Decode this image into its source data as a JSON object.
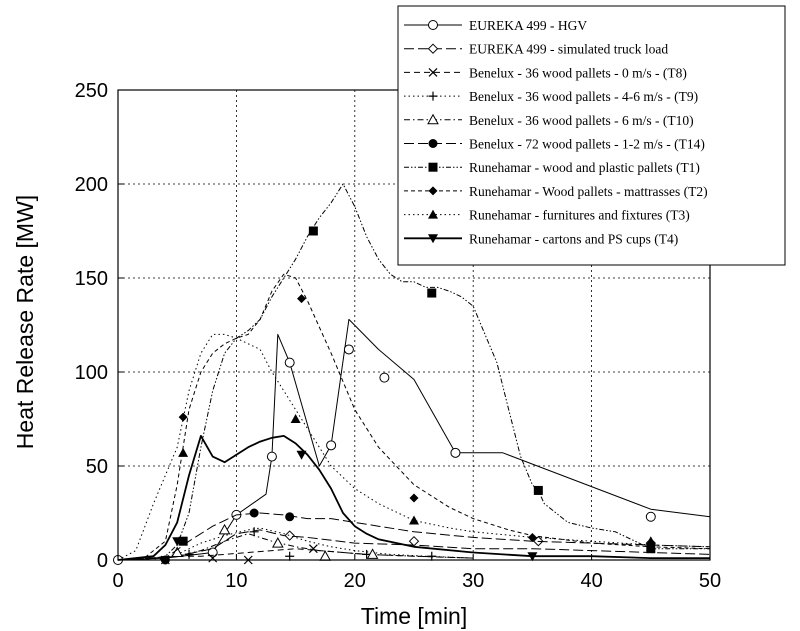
{
  "chart_data": {
    "type": "line",
    "title": "",
    "xlabel": "Time [min]",
    "ylabel": "Heat Release Rate [MW]",
    "xlim": [
      0,
      50
    ],
    "ylim": [
      0,
      250
    ],
    "xticks": [
      "0",
      "10",
      "20",
      "30",
      "40",
      "50"
    ],
    "yticks": [
      "0",
      "50",
      "100",
      "150",
      "200",
      "250"
    ],
    "grid": true,
    "legend_position": "top-right",
    "series": [
      {
        "name": "EUREKA 499 - HGV",
        "style": "solid",
        "marker": "circle-open",
        "x": [
          0,
          4,
          8,
          10,
          12.5,
          13,
          13.5,
          14.5,
          17,
          18,
          19.5,
          22,
          25,
          28.5,
          32.5,
          45,
          50
        ],
        "y": [
          0,
          1,
          4,
          24,
          35,
          55,
          120,
          105,
          50,
          61,
          128,
          112,
          96,
          57,
          57,
          27,
          23
        ],
        "marker_x": [
          0,
          8,
          10,
          13,
          14.5,
          18,
          19.5,
          22.5,
          28.5,
          45
        ],
        "marker_y": [
          0,
          4,
          24,
          55,
          105,
          61,
          112,
          97,
          57,
          23
        ]
      },
      {
        "name": "EUREKA 499 - simulated truck load",
        "style": "dash-long",
        "marker": "diamond-open",
        "x": [
          0,
          5,
          8,
          10,
          12,
          14,
          16,
          20,
          25,
          30,
          35,
          40,
          45,
          50
        ],
        "y": [
          0,
          2,
          6,
          14,
          16,
          13,
          12,
          9,
          8,
          6,
          6,
          5,
          4,
          3
        ],
        "marker_x": [
          14.5,
          25,
          35.5,
          45
        ],
        "marker_y": [
          13,
          10,
          10,
          9
        ]
      },
      {
        "name": "Benelux - 36 wood pallets - 0 m/s - (T8)",
        "style": "dashed",
        "marker": "x",
        "x": [
          0,
          3,
          5,
          7,
          9,
          11,
          13,
          15,
          17,
          19,
          21,
          25,
          30
        ],
        "y": [
          0,
          1,
          2,
          2,
          3,
          4,
          5,
          6,
          5,
          4,
          3,
          2,
          1
        ],
        "marker_x": [
          4,
          8,
          11,
          16.5
        ],
        "marker_y": [
          0,
          1,
          0,
          6
        ]
      },
      {
        "name": "Benelux - 36 wood pallets - 4-6 m/s - (T9)",
        "style": "dotted",
        "marker": "plus",
        "x": [
          0,
          3,
          5,
          7,
          9,
          11,
          12,
          14,
          16,
          18,
          20,
          23,
          26,
          30
        ],
        "y": [
          0,
          1,
          3,
          9,
          13,
          16,
          17,
          14,
          10,
          7,
          5,
          3,
          2,
          1
        ],
        "marker_x": [
          6,
          11.5,
          14.5,
          21,
          26.5
        ],
        "marker_y": [
          3,
          15,
          2,
          3,
          2
        ]
      },
      {
        "name": "Benelux - 36 wood pallets - 6 m/s - (T10)",
        "style": "dash-dot",
        "marker": "triangle-open",
        "x": [
          0,
          3,
          5,
          7,
          9,
          11,
          13,
          15,
          17,
          19,
          21,
          25,
          30
        ],
        "y": [
          0,
          1,
          2,
          5,
          10,
          14,
          10,
          7,
          5,
          4,
          3,
          2,
          1
        ],
        "marker_x": [
          5,
          9,
          13.5,
          17.5,
          21.5
        ],
        "marker_y": [
          4,
          16,
          9,
          2,
          3
        ]
      },
      {
        "name": "Benelux - 72 wood pallets - 1-2 m/s - (T14)",
        "style": "dash-long",
        "marker": "circle-filled",
        "x": [
          0,
          3,
          4,
          6,
          8,
          10,
          12,
          14,
          16,
          18,
          20,
          22,
          25,
          30,
          35,
          40,
          45,
          50
        ],
        "y": [
          0,
          0,
          1,
          10,
          18,
          24,
          25,
          24,
          22,
          22,
          20,
          18,
          15,
          12,
          10,
          9,
          8,
          7
        ],
        "marker_x": [
          4,
          11.5,
          14.5
        ],
        "marker_y": [
          0,
          25,
          23
        ]
      },
      {
        "name": "Runehamar - wood and plastic pallets (T1)",
        "style": "dash-dot-dot",
        "marker": "square-filled",
        "x": [
          0,
          2,
          4,
          5,
          6,
          7,
          8,
          9,
          10,
          11,
          12,
          13,
          14,
          15,
          16,
          17,
          18,
          19,
          20,
          21,
          22,
          23,
          24,
          25,
          26,
          27,
          28,
          29,
          30,
          31,
          32,
          33,
          34,
          35,
          35.5,
          36,
          38,
          40,
          42,
          45,
          50
        ],
        "y": [
          0,
          0,
          2,
          8,
          25,
          60,
          90,
          110,
          118,
          122,
          128,
          140,
          150,
          160,
          172,
          182,
          190,
          200,
          188,
          172,
          160,
          152,
          148,
          148,
          145,
          145,
          143,
          140,
          135,
          120,
          105,
          80,
          55,
          40,
          37,
          30,
          20,
          17,
          15,
          6,
          6
        ],
        "marker_x": [
          5.5,
          16.5,
          26.5,
          35.5,
          45
        ],
        "marker_y": [
          10,
          175,
          142,
          37,
          6
        ]
      },
      {
        "name": "Runehamar - Wood pallets - mattrasses (T2)",
        "style": "dashed-short",
        "marker": "diamond-filled",
        "x": [
          0,
          2,
          4,
          5,
          6,
          7,
          8,
          9,
          10,
          11,
          12,
          13,
          14,
          15,
          16,
          18,
          20,
          22,
          25,
          28,
          30,
          33,
          35,
          40,
          45,
          50
        ],
        "y": [
          0,
          0,
          10,
          40,
          80,
          100,
          110,
          115,
          118,
          120,
          128,
          143,
          152,
          150,
          138,
          110,
          80,
          60,
          40,
          28,
          22,
          16,
          13,
          9,
          7,
          6
        ],
        "marker_x": [
          5.5,
          15.5,
          25,
          35,
          45
        ],
        "marker_y": [
          76,
          139,
          33,
          12,
          8
        ]
      },
      {
        "name": "Runehamar - furnitures and fixtures (T3)",
        "style": "dotted",
        "marker": "triangle-filled",
        "x": [
          0,
          1.5,
          3,
          5,
          6,
          7,
          8,
          9,
          10,
          11,
          12,
          13,
          14,
          15,
          16,
          17,
          18,
          20,
          22,
          25,
          28,
          30,
          35,
          40,
          45,
          50
        ],
        "y": [
          0,
          5,
          30,
          60,
          90,
          110,
          120,
          120,
          118,
          115,
          112,
          100,
          90,
          80,
          70,
          60,
          50,
          38,
          30,
          21,
          17,
          15,
          12,
          10,
          8,
          7
        ],
        "marker_x": [
          5.5,
          15,
          25,
          45
        ],
        "marker_y": [
          57,
          75,
          21,
          10
        ]
      },
      {
        "name": "Runehamar - cartons and PS cups (T4)",
        "style": "solid-thick",
        "marker": "triangle-down-filled",
        "x": [
          0,
          3,
          4,
          5,
          6,
          7,
          8,
          9,
          10,
          11,
          12,
          13,
          14,
          15,
          16,
          17,
          18,
          19,
          20,
          21,
          22,
          25,
          30,
          35,
          40,
          45,
          50
        ],
        "y": [
          0,
          2,
          8,
          20,
          45,
          66,
          55,
          52,
          56,
          60,
          63,
          65,
          66,
          62,
          56,
          48,
          38,
          25,
          18,
          14,
          11,
          7,
          4,
          2,
          2,
          1,
          1
        ],
        "marker_x": [
          5,
          15.5,
          35
        ],
        "marker_y": [
          10,
          56,
          2
        ]
      }
    ]
  }
}
